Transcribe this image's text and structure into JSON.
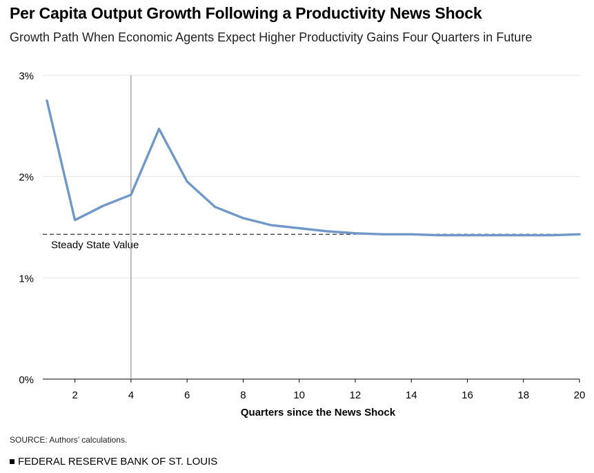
{
  "title": "Per Capita Output Growth Following a Productivity News Shock",
  "subtitle": "Growth Path When Economic Agents Expect Higher Productivity Gains Four Quarters in Future",
  "source": "SOURCE: Authors’ calculations.",
  "footer": "FEDERAL RESERVE BANK OF ST. LOUIS",
  "colors": {
    "line": "#6f98c8",
    "grid": "#e6e6e6",
    "axis": "#000000",
    "marker": "#9a9a9a"
  },
  "chart_data": {
    "type": "line",
    "title": "Per Capita Output Growth Following a Productivity News Shock",
    "subtitle": "Growth Path When Economic Agents Expect Higher Productivity Gains Four Quarters in Future",
    "xlabel": "Quarters since the News Shock",
    "ylabel": "",
    "xlim": [
      1,
      20
    ],
    "ylim": [
      0,
      3
    ],
    "x_ticks": [
      2,
      4,
      6,
      8,
      10,
      12,
      14,
      16,
      18,
      20
    ],
    "y_ticks": [
      0,
      1,
      2,
      3
    ],
    "y_tick_labels": [
      "0%",
      "1%",
      "2%",
      "3%"
    ],
    "grid": "horizontal",
    "series": [
      {
        "x": [
          1,
          2,
          3,
          4,
          5,
          6,
          7,
          8,
          9,
          10,
          11,
          12,
          13,
          14,
          15,
          16,
          17,
          18,
          19,
          20
        ],
        "values": [
          2.75,
          1.57,
          1.71,
          1.82,
          2.47,
          1.95,
          1.7,
          1.59,
          1.52,
          1.49,
          1.46,
          1.44,
          1.43,
          1.43,
          1.42,
          1.42,
          1.42,
          1.42,
          1.42,
          1.43
        ]
      }
    ],
    "reference_lines": [
      {
        "type": "horizontal",
        "value": 1.43,
        "style": "dashed",
        "label": "Steady State Value"
      },
      {
        "type": "vertical",
        "value": 4,
        "style": "solid",
        "label": ""
      }
    ]
  }
}
